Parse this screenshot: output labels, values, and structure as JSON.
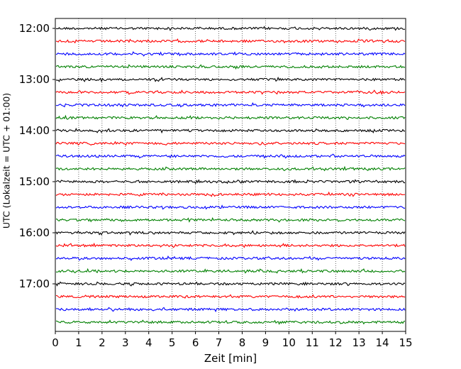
{
  "chart_data": {
    "type": "line",
    "xlabel": "Zeit  [min]",
    "ylabel": "UTC (Lokalzeit = UTC + 01:00)",
    "xlim": [
      0,
      15
    ],
    "x_ticks": [
      "0",
      "1",
      "2",
      "3",
      "4",
      "5",
      "6",
      "7",
      "8",
      "9",
      "10",
      "11",
      "12",
      "13",
      "14",
      "15"
    ],
    "y_ticks": [
      "12:00",
      "13:00",
      "14:00",
      "15:00",
      "16:00",
      "17:00"
    ],
    "grid": "vertical dotted",
    "row_minutes": 15,
    "start_time": "12:00",
    "row_count": 24,
    "colors": [
      "#000000",
      "#ff0000",
      "#0000ff",
      "#008000"
    ]
  }
}
